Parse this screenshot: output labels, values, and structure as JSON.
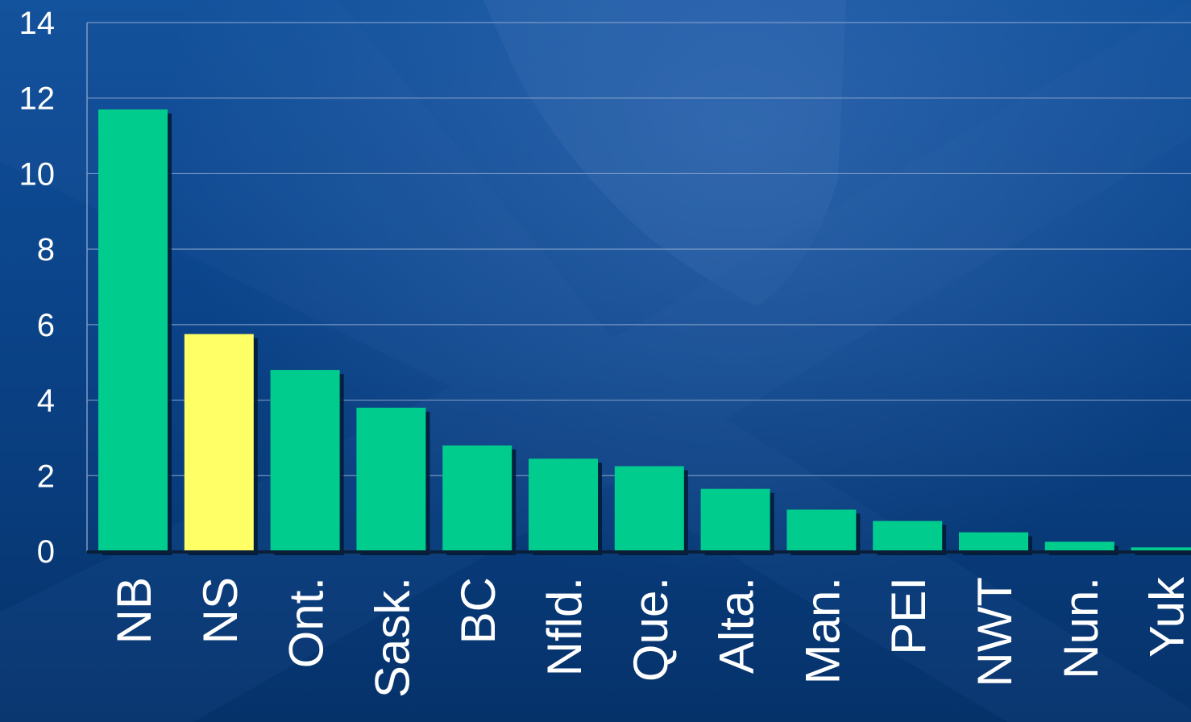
{
  "chart_data": {
    "type": "bar",
    "title": "",
    "xlabel": "",
    "ylabel": "",
    "categories": [
      "NB",
      "NS",
      "Ont.",
      "Sask.",
      "BC",
      "Nfld.",
      "Que.",
      "Alta.",
      "Man.",
      "PEI",
      "NWT",
      "Nun.",
      "Yuk"
    ],
    "values": [
      11.7,
      5.75,
      4.8,
      3.8,
      2.8,
      2.45,
      2.25,
      1.65,
      1.1,
      0.8,
      0.5,
      0.25,
      0.1
    ],
    "highlight": "NS",
    "ylim": [
      0,
      14
    ],
    "yticks": [
      "0",
      "2",
      "4",
      "6",
      "8",
      "10",
      "12",
      "14"
    ],
    "grid": true,
    "legend": "none",
    "colors": {
      "bar": "#00cc8e",
      "highlight": "#ffff66",
      "shadow": "#001a33",
      "gridline": "#8fa9cf",
      "axis": "#0a1e38",
      "background": "#0b4388"
    }
  }
}
